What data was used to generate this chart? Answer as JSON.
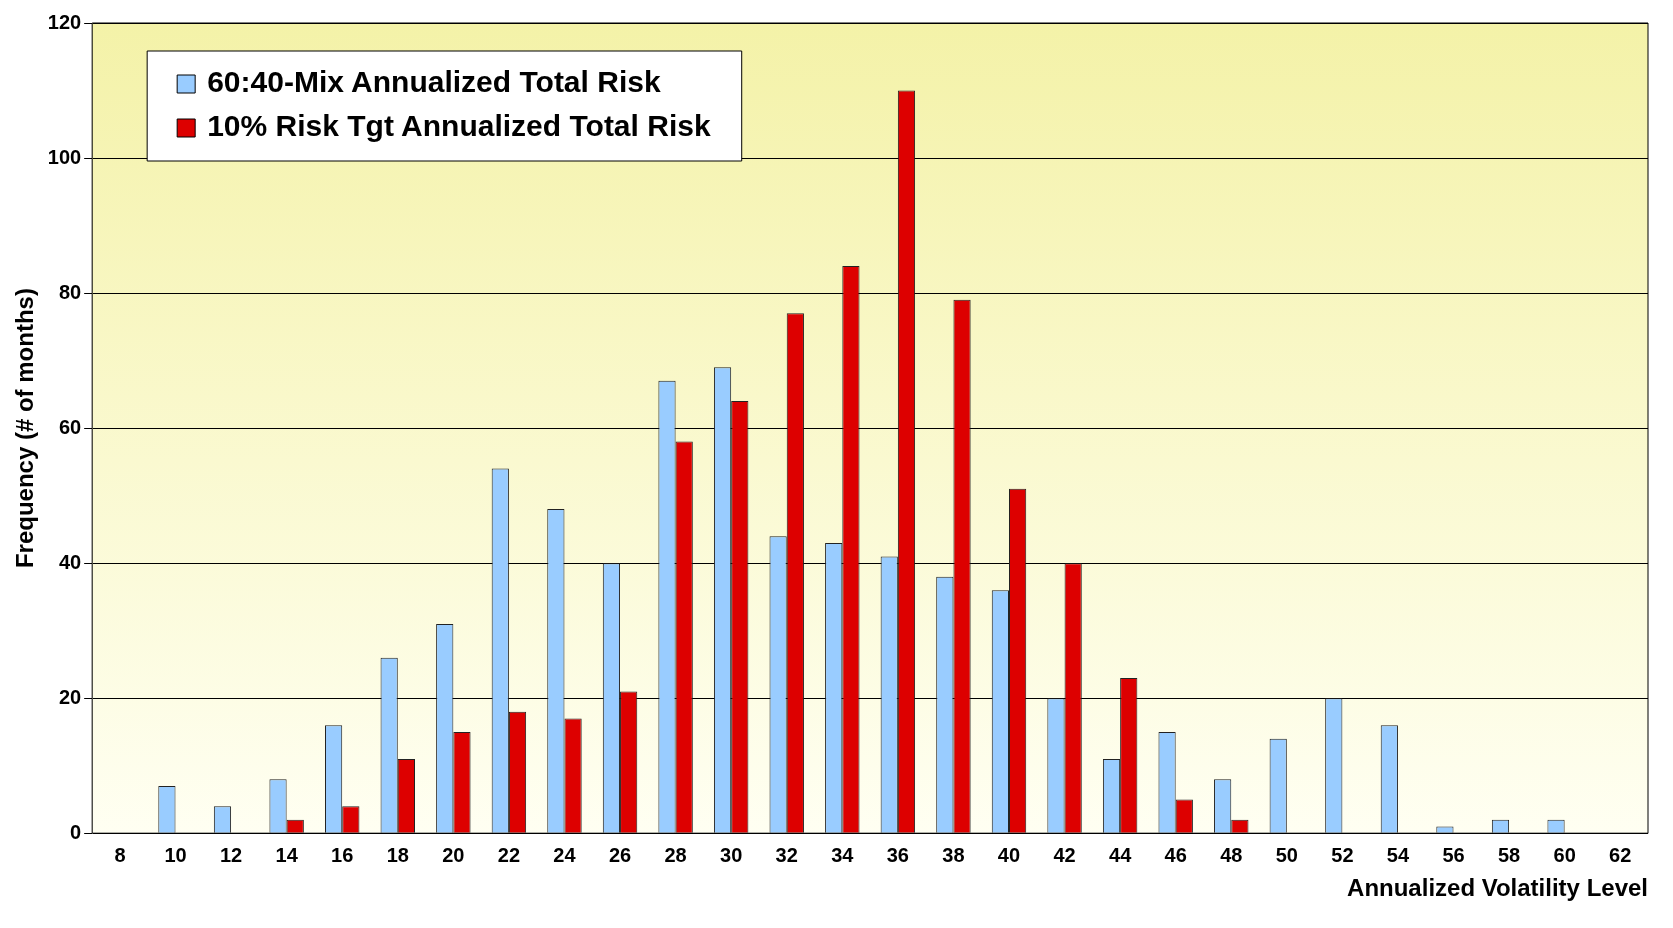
{
  "chart_data": {
    "type": "bar",
    "xlabel": "Annualized Volatility Level",
    "ylabel": "Frequency (# of months)",
    "categories": [
      "8",
      "10",
      "12",
      "14",
      "16",
      "18",
      "20",
      "22",
      "24",
      "26",
      "28",
      "30",
      "32",
      "34",
      "36",
      "38",
      "40",
      "42",
      "44",
      "46",
      "48",
      "50",
      "52",
      "54",
      "56",
      "58",
      "60",
      "62"
    ],
    "series": [
      {
        "name": "60:40-Mix Annualized Total Risk",
        "color": "#99ccff",
        "values": [
          null,
          7,
          4,
          8,
          16,
          26,
          31,
          54,
          48,
          40,
          67,
          69,
          44,
          43,
          41,
          38,
          36,
          20,
          11,
          15,
          8,
          14,
          20,
          16,
          1,
          2,
          2,
          null
        ]
      },
      {
        "name": "10% Risk Tgt Annualized Total Risk",
        "color": "#dd0000",
        "values": [
          null,
          null,
          null,
          2,
          4,
          11,
          15,
          18,
          17,
          21,
          58,
          64,
          77,
          84,
          110,
          79,
          51,
          40,
          23,
          5,
          2,
          null,
          null,
          null,
          null,
          null,
          null,
          null
        ]
      }
    ],
    "ylim": [
      0,
      120
    ],
    "yticks": [
      0,
      20,
      40,
      60,
      80,
      100,
      120
    ],
    "grid": "y",
    "legend": "top left"
  }
}
